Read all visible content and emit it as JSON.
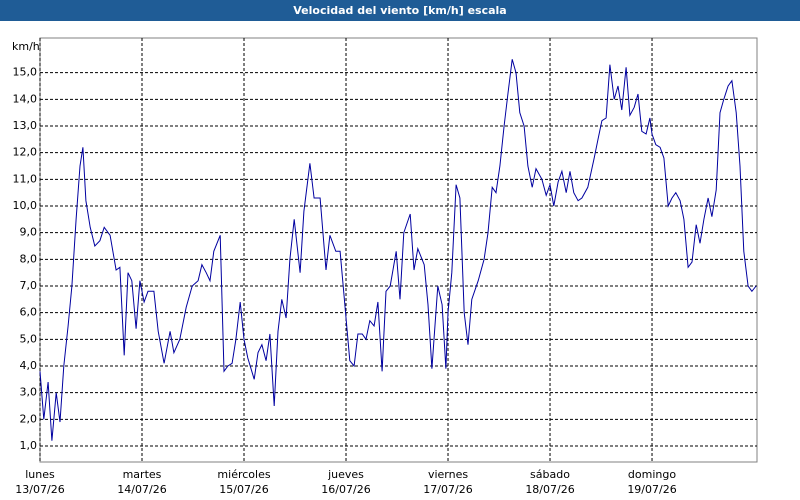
{
  "chart_data": {
    "type": "line",
    "title": "Velocidad del viento [km/h] escala",
    "y_label": "km/h",
    "x": [
      0,
      0.9,
      1.9,
      2.8,
      3.8,
      4.7,
      5.6,
      6.6,
      7.5,
      8.5,
      9.4,
      10.1,
      10.8,
      11.8,
      12.9,
      14.1,
      15.1,
      16.5,
      17.9,
      18.8,
      19.8,
      20.7,
      21.6,
      22.6,
      23.5,
      24.5,
      25.4,
      26.8,
      27.8,
      29.2,
      30.6,
      31.5,
      32.9,
      34.4,
      35.8,
      37.2,
      38.1,
      39.1,
      40,
      40.9,
      42.4,
      43.3,
      44.2,
      45.2,
      46.1,
      47.1,
      48,
      48.9,
      50.4,
      51.3,
      52.2,
      53.2,
      54.1,
      55.1,
      56,
      56.9,
      57.9,
      58.8,
      59.8,
      61.2,
      62.1,
      63.5,
      64.5,
      65.9,
      67.3,
      68.2,
      69.6,
      70.6,
      71.5,
      72.9,
      73.9,
      74.8,
      75.8,
      76.7,
      77.6,
      78.6,
      79.5,
      80.5,
      81.4,
      82.4,
      83.8,
      84.7,
      85.6,
      87.1,
      88,
      88.9,
      90.4,
      91.3,
      92.2,
      93.6,
      94.6,
      95.5,
      96,
      96.9,
      97.9,
      98.8,
      99.8,
      100.7,
      101.6,
      103.1,
      104.5,
      105.4,
      106.4,
      107.3,
      108.2,
      109.2,
      110.1,
      111.1,
      112,
      112.9,
      113.9,
      114.8,
      115.8,
      116.7,
      118.1,
      119.1,
      120,
      120.9,
      121.9,
      122.8,
      123.8,
      124.7,
      125.6,
      126.6,
      127.5,
      128.9,
      130.4,
      131.3,
      132.2,
      133.2,
      134.1,
      135.1,
      136,
      136.9,
      137.9,
      138.8,
      139.8,
      140.7,
      141.6,
      142.6,
      143.5,
      144,
      144.9,
      145.9,
      146.8,
      147.8,
      148.7,
      149.6,
      150.6,
      151.5,
      152.5,
      153.4,
      154.4,
      155.3,
      156.2,
      157.2,
      158.1,
      159.1,
      160,
      160.9,
      161.9,
      162.8,
      163.8,
      164.7,
      165.6,
      166.6,
      167.5,
      168.5
    ],
    "series": [
      {
        "name": "Velocidad del viento",
        "color": "#0000a0",
        "values": [
          3.8,
          2.0,
          3.4,
          1.2,
          3.0,
          1.9,
          4.0,
          5.5,
          7.0,
          9.5,
          11.5,
          12.2,
          10.2,
          9.2,
          8.5,
          8.7,
          9.2,
          8.9,
          7.6,
          7.7,
          4.4,
          7.5,
          7.2,
          5.4,
          7.2,
          6.4,
          6.8,
          6.8,
          5.3,
          4.1,
          5.3,
          4.5,
          5.0,
          6.2,
          7.0,
          7.2,
          7.8,
          7.5,
          7.2,
          8.3,
          8.9,
          3.8,
          4.0,
          4.1,
          5.0,
          6.4,
          5.0,
          4.3,
          3.5,
          4.5,
          4.8,
          4.2,
          5.2,
          2.5,
          5.3,
          6.5,
          5.8,
          8.0,
          9.5,
          7.5,
          9.8,
          11.6,
          10.3,
          10.3,
          7.6,
          8.9,
          8.3,
          8.3,
          6.7,
          4.2,
          4.0,
          5.2,
          5.2,
          5.0,
          5.7,
          5.5,
          6.4,
          3.8,
          6.8,
          7.0,
          8.3,
          6.5,
          9.0,
          9.7,
          7.6,
          8.4,
          7.8,
          6.3,
          3.9,
          7.0,
          6.3,
          3.9,
          6.0,
          7.5,
          10.8,
          10.3,
          6.0,
          4.8,
          6.5,
          7.2,
          8.0,
          9.0,
          10.7,
          10.5,
          11.5,
          13.0,
          14.2,
          15.5,
          15.0,
          13.5,
          13.0,
          11.5,
          10.7,
          11.4,
          11.0,
          10.4,
          10.8,
          10.0,
          10.9,
          11.3,
          10.5,
          11.3,
          10.5,
          10.2,
          10.3,
          10.7,
          11.8,
          12.5,
          13.2,
          13.3,
          15.3,
          14.0,
          14.5,
          13.6,
          15.2,
          13.4,
          13.7,
          14.2,
          12.8,
          12.7,
          13.3,
          12.7,
          12.3,
          12.2,
          11.8,
          10.0,
          10.3,
          10.5,
          10.2,
          9.5,
          7.7,
          7.9,
          9.3,
          8.6,
          9.5,
          10.3,
          9.6,
          10.6,
          13.5,
          14.0,
          14.5,
          14.7,
          13.5,
          11.5,
          8.3,
          7.0,
          6.8,
          7.0
        ]
      }
    ],
    "xlim": [
      0,
      168.7
    ],
    "xticks": [
      {
        "value": 0,
        "label": [
          "lunes",
          "13/07/26"
        ]
      },
      {
        "value": 24,
        "label": [
          "martes",
          "14/07/26"
        ]
      },
      {
        "value": 48,
        "label": [
          "miércoles",
          "15/07/26"
        ]
      },
      {
        "value": 72,
        "label": [
          "jueves",
          "16/07/26"
        ]
      },
      {
        "value": 96,
        "label": [
          "viernes",
          "17/07/26"
        ]
      },
      {
        "value": 120,
        "label": [
          "sábado",
          "18/07/26"
        ]
      },
      {
        "value": 144,
        "label": [
          "domingo",
          "19/07/26"
        ]
      }
    ],
    "ylim": [
      0.4,
      16.3
    ],
    "yticks": [
      {
        "value": 1,
        "label": "1,0"
      },
      {
        "value": 2,
        "label": "2,0"
      },
      {
        "value": 3,
        "label": "3,0"
      },
      {
        "value": 4,
        "label": "4,0"
      },
      {
        "value": 5,
        "label": "5,0"
      },
      {
        "value": 6,
        "label": "6,0"
      },
      {
        "value": 7,
        "label": "7,0"
      },
      {
        "value": 8,
        "label": "8,0"
      },
      {
        "value": 9,
        "label": "9,0"
      },
      {
        "value": 10,
        "label": "10,0"
      },
      {
        "value": 11,
        "label": "11,0"
      },
      {
        "value": 12,
        "label": "12,0"
      },
      {
        "value": 13,
        "label": "13,0"
      },
      {
        "value": 14,
        "label": "14,0"
      },
      {
        "value": 15,
        "label": "15,0"
      }
    ],
    "grid": true
  }
}
